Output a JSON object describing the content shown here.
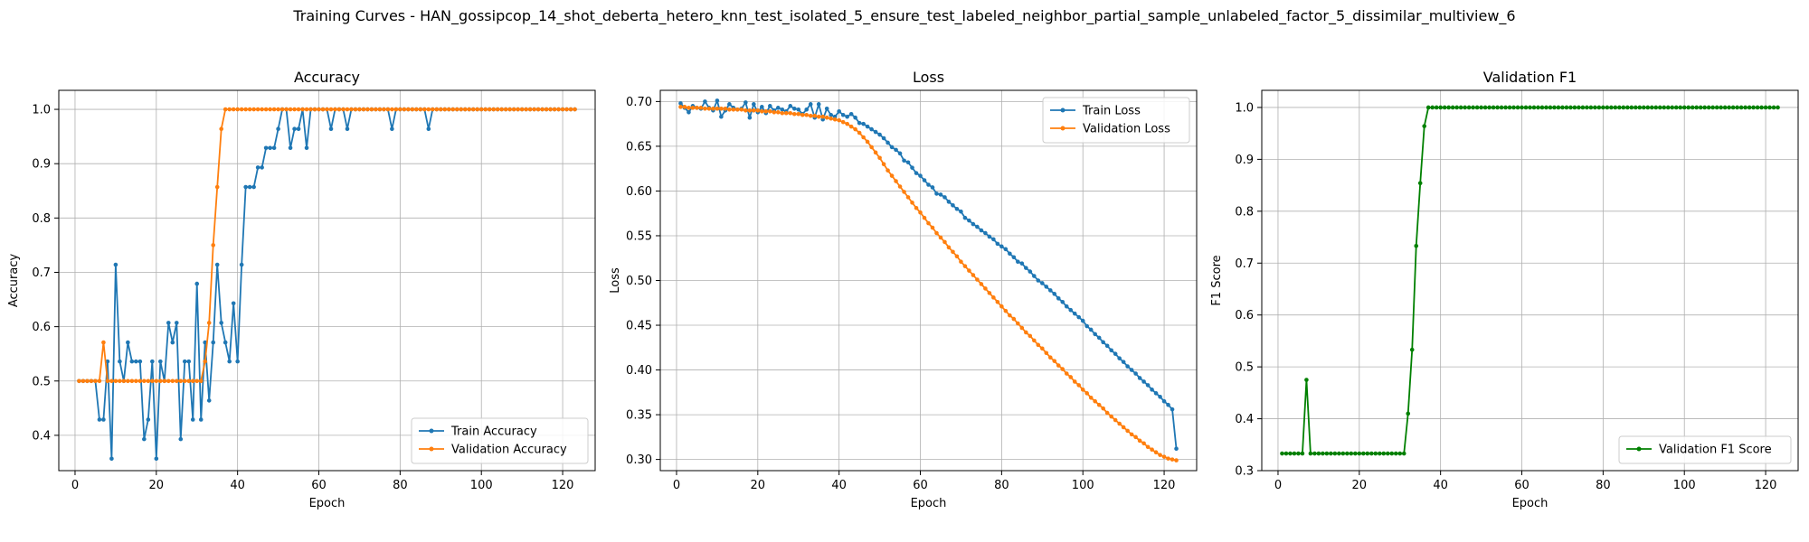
{
  "suptitle": "Training Curves - HAN_gossipcop_14_shot_deberta_hetero_knn_test_isolated_5_ensure_test_labeled_neighbor_partial_sample_unlabeled_factor_5_dissimilar_multiview_6",
  "chart_data": [
    {
      "type": "line",
      "title": "Accuracy",
      "xlabel": "Epoch",
      "ylabel": "Accuracy",
      "xlim": [
        -4,
        128
      ],
      "ylim": [
        0.335,
        1.035
      ],
      "xticks": [
        0,
        20,
        40,
        60,
        80,
        100,
        120
      ],
      "yticks": [
        0.4,
        0.5,
        0.6,
        0.7,
        0.8,
        0.9,
        1.0
      ],
      "ytick_labels": [
        "0.4",
        "0.5",
        "0.6",
        "0.7",
        "0.8",
        "0.9",
        "1.0"
      ],
      "grid": true,
      "legend": "lower-right",
      "series": [
        {
          "name": "Train Accuracy",
          "color": "#1f77b4",
          "x_start": 1,
          "values": [
            0.5,
            0.5,
            0.5,
            0.5,
            0.5,
            0.429,
            0.429,
            0.536,
            0.357,
            0.714,
            0.536,
            0.5,
            0.571,
            0.536,
            0.536,
            0.536,
            0.393,
            0.429,
            0.536,
            0.357,
            0.536,
            0.5,
            0.607,
            0.571,
            0.607,
            0.393,
            0.536,
            0.536,
            0.429,
            0.679,
            0.429,
            0.571,
            0.464,
            0.571,
            0.714,
            0.607,
            0.571,
            0.536,
            0.643,
            0.536,
            0.714,
            0.857,
            0.857,
            0.857,
            0.893,
            0.893,
            0.929,
            0.929,
            0.929,
            0.964,
            1.0,
            1.0,
            0.929,
            0.964,
            0.964,
            1.0,
            0.929,
            1.0,
            1.0,
            1.0,
            1.0,
            1.0,
            0.964,
            1.0,
            1.0,
            1.0,
            0.964,
            1.0,
            1.0,
            1.0,
            1.0,
            1.0,
            1.0,
            1.0,
            1.0,
            1.0,
            1.0,
            0.964,
            1.0,
            1.0,
            1.0,
            1.0,
            1.0,
            1.0,
            1.0,
            1.0,
            0.964,
            1.0,
            1.0,
            1.0,
            1.0,
            1.0,
            1.0,
            1.0,
            1.0,
            1.0,
            1.0,
            1.0,
            1.0,
            1.0,
            1.0,
            1.0,
            1.0,
            1.0,
            1.0,
            1.0,
            1.0,
            1.0,
            1.0,
            1.0,
            1.0,
            1.0,
            1.0,
            1.0,
            1.0,
            1.0,
            1.0,
            1.0,
            1.0,
            1.0,
            1.0,
            1.0,
            1.0
          ]
        },
        {
          "name": "Validation Accuracy",
          "color": "#ff7f0e",
          "x_start": 1,
          "values": [
            0.5,
            0.5,
            0.5,
            0.5,
            0.5,
            0.5,
            0.571,
            0.5,
            0.5,
            0.5,
            0.5,
            0.5,
            0.5,
            0.5,
            0.5,
            0.5,
            0.5,
            0.5,
            0.5,
            0.5,
            0.5,
            0.5,
            0.5,
            0.5,
            0.5,
            0.5,
            0.5,
            0.5,
            0.5,
            0.5,
            0.5,
            0.536,
            0.607,
            0.75,
            0.857,
            0.964,
            1.0,
            1.0,
            1.0,
            1.0,
            1.0,
            1.0,
            1.0,
            1.0,
            1.0,
            1.0,
            1.0,
            1.0,
            1.0,
            1.0,
            1.0,
            1.0,
            1.0,
            1.0,
            1.0,
            1.0,
            1.0,
            1.0,
            1.0,
            1.0,
            1.0,
            1.0,
            1.0,
            1.0,
            1.0,
            1.0,
            1.0,
            1.0,
            1.0,
            1.0,
            1.0,
            1.0,
            1.0,
            1.0,
            1.0,
            1.0,
            1.0,
            1.0,
            1.0,
            1.0,
            1.0,
            1.0,
            1.0,
            1.0,
            1.0,
            1.0,
            1.0,
            1.0,
            1.0,
            1.0,
            1.0,
            1.0,
            1.0,
            1.0,
            1.0,
            1.0,
            1.0,
            1.0,
            1.0,
            1.0,
            1.0,
            1.0,
            1.0,
            1.0,
            1.0,
            1.0,
            1.0,
            1.0,
            1.0,
            1.0,
            1.0,
            1.0,
            1.0,
            1.0,
            1.0,
            1.0,
            1.0,
            1.0,
            1.0,
            1.0,
            1.0,
            1.0,
            1.0
          ]
        }
      ]
    },
    {
      "type": "line",
      "title": "Loss",
      "xlabel": "Epoch",
      "ylabel": "Loss",
      "xlim": [
        -4,
        128
      ],
      "ylim": [
        0.2875,
        0.7125
      ],
      "xticks": [
        0,
        20,
        40,
        60,
        80,
        100,
        120
      ],
      "yticks": [
        0.3,
        0.35,
        0.4,
        0.45,
        0.5,
        0.55,
        0.6,
        0.65,
        0.7
      ],
      "ytick_labels": [
        "0.30",
        "0.35",
        "0.40",
        "0.45",
        "0.50",
        "0.55",
        "0.60",
        "0.65",
        "0.70"
      ],
      "grid": true,
      "legend": "upper-right",
      "series": [
        {
          "name": "Train Loss",
          "color": "#1f77b4",
          "x_start": 1,
          "values": [
            0.698,
            0.693,
            0.688,
            0.695,
            0.693,
            0.692,
            0.7,
            0.693,
            0.69,
            0.701,
            0.683,
            0.69,
            0.697,
            0.693,
            0.691,
            0.692,
            0.699,
            0.682,
            0.697,
            0.688,
            0.694,
            0.687,
            0.695,
            0.69,
            0.693,
            0.691,
            0.689,
            0.695,
            0.692,
            0.691,
            0.686,
            0.691,
            0.697,
            0.682,
            0.697,
            0.68,
            0.692,
            0.685,
            0.683,
            0.689,
            0.685,
            0.683,
            0.686,
            0.682,
            0.676,
            0.675,
            0.672,
            0.669,
            0.666,
            0.663,
            0.659,
            0.654,
            0.649,
            0.646,
            0.642,
            0.634,
            0.632,
            0.626,
            0.62,
            0.617,
            0.612,
            0.607,
            0.604,
            0.597,
            0.596,
            0.593,
            0.588,
            0.584,
            0.58,
            0.577,
            0.57,
            0.567,
            0.563,
            0.56,
            0.556,
            0.553,
            0.549,
            0.546,
            0.541,
            0.538,
            0.535,
            0.53,
            0.526,
            0.521,
            0.519,
            0.514,
            0.51,
            0.505,
            0.5,
            0.497,
            0.493,
            0.489,
            0.485,
            0.48,
            0.476,
            0.471,
            0.467,
            0.463,
            0.459,
            0.455,
            0.449,
            0.445,
            0.44,
            0.436,
            0.431,
            0.427,
            0.422,
            0.418,
            0.413,
            0.409,
            0.404,
            0.4,
            0.396,
            0.391,
            0.387,
            0.383,
            0.378,
            0.374,
            0.37,
            0.365,
            0.361,
            0.356,
            0.312
          ]
        },
        {
          "name": "Validation Loss",
          "color": "#ff7f0e",
          "x_start": 1,
          "values": [
            0.694,
            0.694,
            0.693,
            0.693,
            0.693,
            0.693,
            0.692,
            0.692,
            0.692,
            0.692,
            0.692,
            0.692,
            0.691,
            0.691,
            0.691,
            0.691,
            0.69,
            0.69,
            0.69,
            0.69,
            0.689,
            0.689,
            0.689,
            0.688,
            0.688,
            0.687,
            0.687,
            0.687,
            0.686,
            0.686,
            0.685,
            0.685,
            0.684,
            0.684,
            0.683,
            0.683,
            0.682,
            0.681,
            0.68,
            0.679,
            0.677,
            0.675,
            0.672,
            0.669,
            0.665,
            0.66,
            0.655,
            0.649,
            0.643,
            0.637,
            0.63,
            0.623,
            0.617,
            0.611,
            0.605,
            0.599,
            0.593,
            0.587,
            0.581,
            0.576,
            0.57,
            0.564,
            0.559,
            0.553,
            0.548,
            0.543,
            0.537,
            0.532,
            0.527,
            0.521,
            0.516,
            0.511,
            0.506,
            0.501,
            0.496,
            0.491,
            0.486,
            0.481,
            0.476,
            0.471,
            0.466,
            0.461,
            0.457,
            0.452,
            0.447,
            0.442,
            0.438,
            0.433,
            0.428,
            0.424,
            0.419,
            0.414,
            0.41,
            0.405,
            0.401,
            0.396,
            0.392,
            0.387,
            0.383,
            0.378,
            0.374,
            0.369,
            0.365,
            0.361,
            0.357,
            0.352,
            0.348,
            0.344,
            0.34,
            0.336,
            0.332,
            0.328,
            0.325,
            0.321,
            0.318,
            0.314,
            0.311,
            0.308,
            0.305,
            0.303,
            0.301,
            0.3,
            0.299
          ]
        }
      ]
    },
    {
      "type": "line",
      "title": "Validation F1",
      "xlabel": "Epoch",
      "ylabel": "F1 Score",
      "xlim": [
        -4,
        128
      ],
      "ylim": [
        0.3,
        1.033
      ],
      "xticks": [
        0,
        20,
        40,
        60,
        80,
        100,
        120
      ],
      "yticks": [
        0.3,
        0.4,
        0.5,
        0.6,
        0.7,
        0.8,
        0.9,
        1.0
      ],
      "ytick_labels": [
        "0.3",
        "0.4",
        "0.5",
        "0.6",
        "0.7",
        "0.8",
        "0.9",
        "1.0"
      ],
      "grid": true,
      "legend": "lower-right",
      "series": [
        {
          "name": "Validation F1 Score",
          "color": "#008000",
          "x_start": 1,
          "values": [
            0.333,
            0.333,
            0.333,
            0.333,
            0.333,
            0.333,
            0.475,
            0.333,
            0.333,
            0.333,
            0.333,
            0.333,
            0.333,
            0.333,
            0.333,
            0.333,
            0.333,
            0.333,
            0.333,
            0.333,
            0.333,
            0.333,
            0.333,
            0.333,
            0.333,
            0.333,
            0.333,
            0.333,
            0.333,
            0.333,
            0.333,
            0.41,
            0.533,
            0.733,
            0.854,
            0.964,
            1.0,
            1.0,
            1.0,
            1.0,
            1.0,
            1.0,
            1.0,
            1.0,
            1.0,
            1.0,
            1.0,
            1.0,
            1.0,
            1.0,
            1.0,
            1.0,
            1.0,
            1.0,
            1.0,
            1.0,
            1.0,
            1.0,
            1.0,
            1.0,
            1.0,
            1.0,
            1.0,
            1.0,
            1.0,
            1.0,
            1.0,
            1.0,
            1.0,
            1.0,
            1.0,
            1.0,
            1.0,
            1.0,
            1.0,
            1.0,
            1.0,
            1.0,
            1.0,
            1.0,
            1.0,
            1.0,
            1.0,
            1.0,
            1.0,
            1.0,
            1.0,
            1.0,
            1.0,
            1.0,
            1.0,
            1.0,
            1.0,
            1.0,
            1.0,
            1.0,
            1.0,
            1.0,
            1.0,
            1.0,
            1.0,
            1.0,
            1.0,
            1.0,
            1.0,
            1.0,
            1.0,
            1.0,
            1.0,
            1.0,
            1.0,
            1.0,
            1.0,
            1.0,
            1.0,
            1.0,
            1.0,
            1.0,
            1.0,
            1.0,
            1.0,
            1.0,
            1.0
          ]
        }
      ]
    }
  ]
}
